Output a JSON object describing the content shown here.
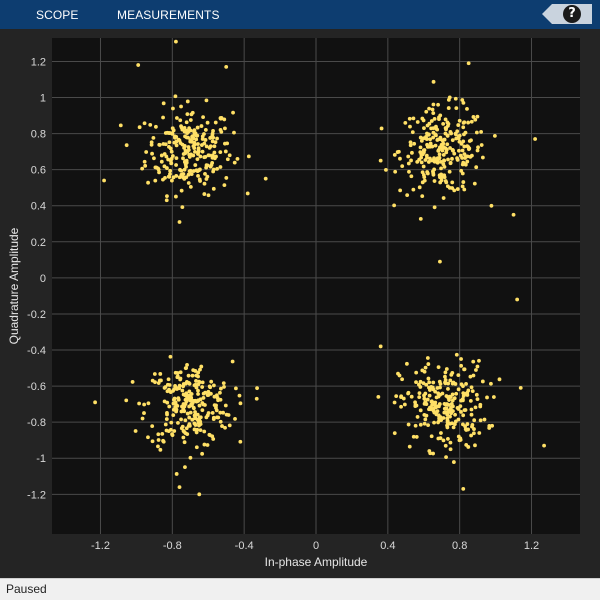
{
  "toolbar": {
    "tabs": [
      {
        "label": "SCOPE"
      },
      {
        "label": "MEASUREMENTS"
      }
    ],
    "help_label": "?"
  },
  "status": {
    "text": "Paused"
  },
  "colors": {
    "toolbar_bg": "#0d3d70",
    "figure_bg": "#242424",
    "axes_bg": "#111111",
    "grid": "#4a4a4a",
    "marker": "#ffe066"
  },
  "chart_data": {
    "type": "scatter",
    "xlabel": "In-phase Amplitude",
    "ylabel": "Quadrature Amplitude",
    "xlim": [
      -1.47,
      1.47
    ],
    "ylim": [
      -1.42,
      1.33
    ],
    "xticks": [
      -1.2,
      -0.8,
      -0.4,
      0,
      0.4,
      0.8,
      1.2
    ],
    "xtick_labels": [
      "-1.2",
      "-0.8",
      "-0.4",
      "0",
      "0.4",
      "0.8",
      "1.2"
    ],
    "yticks": [
      -1.2,
      -1,
      -0.8,
      -0.6,
      -0.4,
      -0.2,
      0,
      0.2,
      0.4,
      0.6,
      0.8,
      1,
      1.2
    ],
    "ytick_labels": [
      "-1.2",
      "-1",
      "-0.8",
      "-0.6",
      "-0.4",
      "-0.2",
      "0",
      "0.2",
      "0.4",
      "0.6",
      "0.8",
      "1",
      "1.2"
    ],
    "grid": true,
    "constellation_centers": [
      [
        -0.707,
        0.707
      ],
      [
        0.707,
        0.707
      ],
      [
        -0.707,
        -0.707
      ],
      [
        0.707,
        -0.707
      ]
    ],
    "points_per_cluster": 250,
    "noise_std": 0.12,
    "outliers": [
      [
        -0.78,
        1.31
      ],
      [
        -0.99,
        1.18
      ],
      [
        -0.5,
        1.17
      ],
      [
        0.85,
        1.19
      ],
      [
        -1.18,
        0.54
      ],
      [
        -0.28,
        0.55
      ],
      [
        -0.76,
        0.31
      ],
      [
        0.36,
        0.65
      ],
      [
        0.69,
        0.09
      ],
      [
        1.12,
        -0.12
      ],
      [
        1.1,
        0.35
      ],
      [
        1.22,
        0.77
      ],
      [
        -1.23,
        -0.69
      ],
      [
        0.36,
        -0.38
      ],
      [
        1.27,
        -0.93
      ],
      [
        -0.65,
        -1.2
      ],
      [
        -0.76,
        -1.16
      ],
      [
        0.82,
        -1.17
      ],
      [
        1.14,
        -0.61
      ],
      [
        -0.33,
        -0.67
      ]
    ]
  }
}
